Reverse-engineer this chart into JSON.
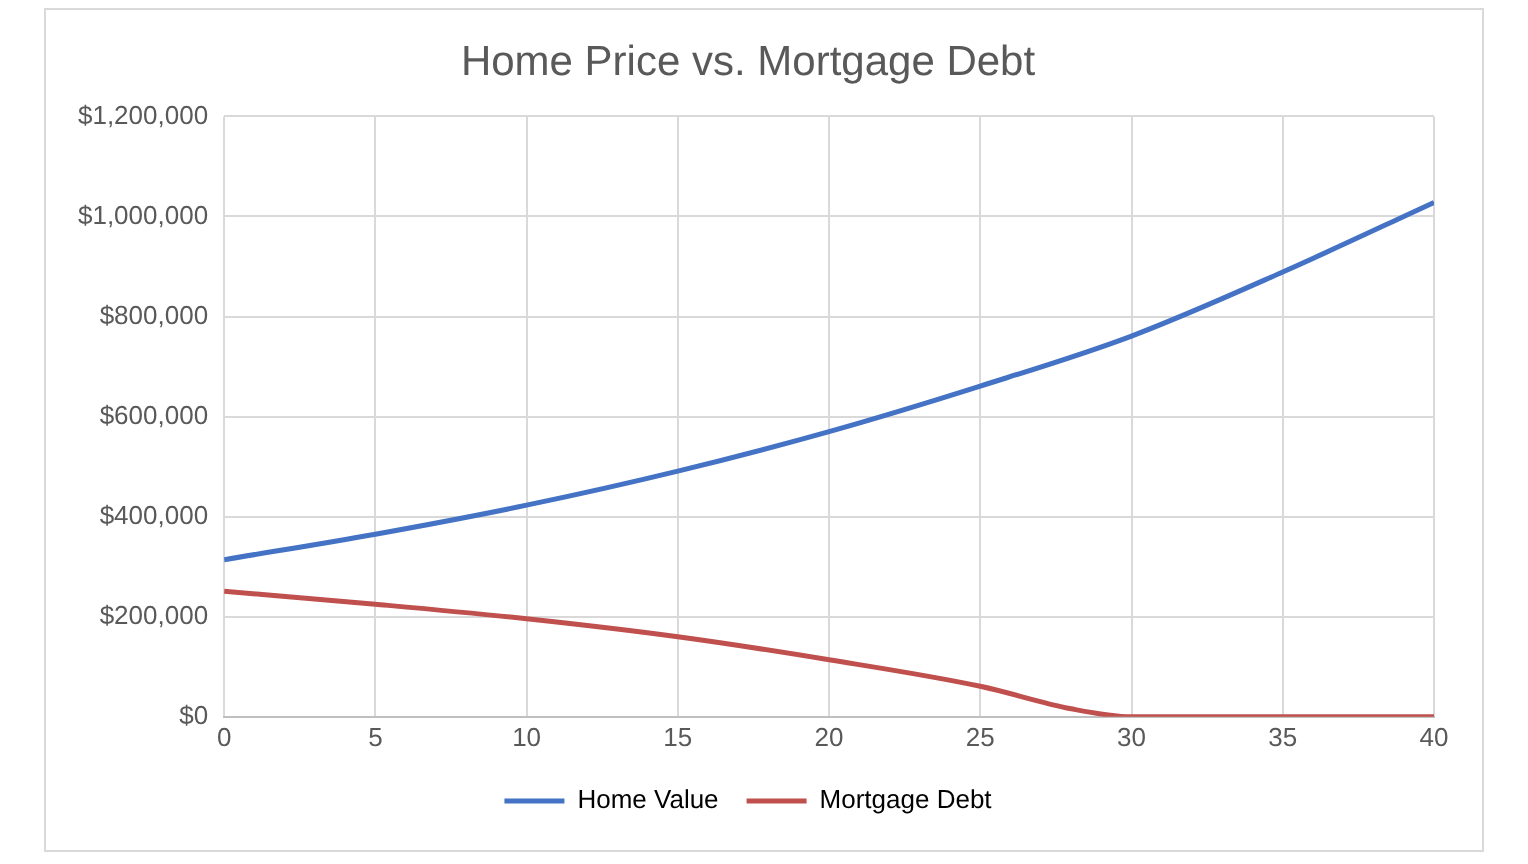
{
  "chart_data": {
    "type": "line",
    "title": "Home Price vs. Mortgage Debt",
    "x": [
      0,
      5,
      10,
      15,
      20,
      25,
      30,
      35,
      40
    ],
    "series": [
      {
        "name": "Home Value",
        "color": "#4472c4",
        "values": [
          314000,
          365000,
          423000,
          491000,
          570000,
          661000,
          761000,
          889000,
          1028000
        ]
      },
      {
        "name": "Mortgage Debt",
        "color": "#c0504d",
        "x": [
          0,
          5,
          10,
          15,
          20,
          25,
          28,
          30,
          35,
          40
        ],
        "values": [
          251000,
          225000,
          196000,
          160000,
          114000,
          61000,
          16000,
          0,
          0,
          0
        ]
      }
    ],
    "xlim": [
      0,
      40
    ],
    "xticks": [
      0,
      5,
      10,
      15,
      20,
      25,
      30,
      35,
      40
    ],
    "ylim": [
      0,
      1200000
    ],
    "yticks": [
      {
        "value": 0,
        "label": "$0"
      },
      {
        "value": 200000,
        "label": "$200,000"
      },
      {
        "value": 400000,
        "label": "$400,000"
      },
      {
        "value": 600000,
        "label": "$600,000"
      },
      {
        "value": 800000,
        "label": "$800,000"
      },
      {
        "value": 1000000,
        "label": "$1,000,000"
      },
      {
        "value": 1200000,
        "label": "$1,200,000"
      }
    ],
    "grid": true,
    "legend": "bottom",
    "marker": "none",
    "line_style": "solid"
  }
}
